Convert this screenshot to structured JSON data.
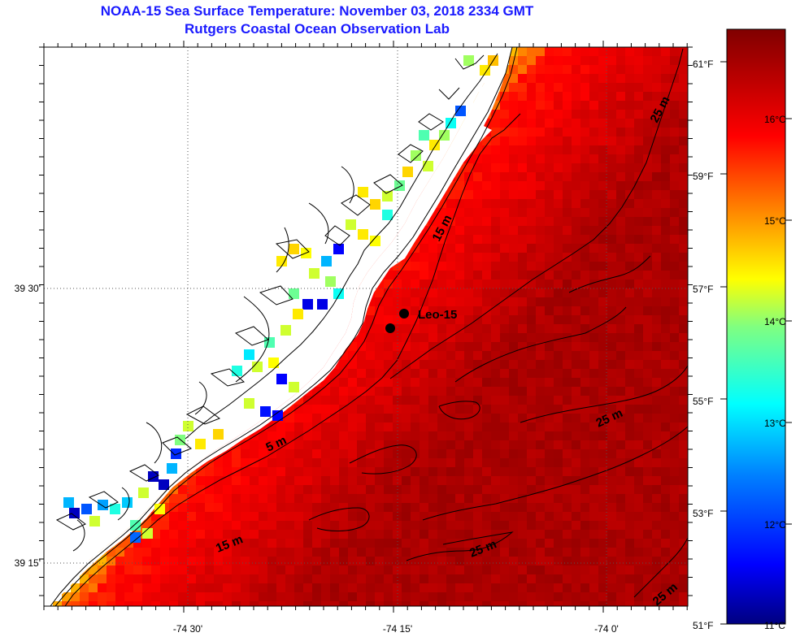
{
  "header": {
    "title": "NOAA-15 Sea Surface Temperature:  November 03, 2018 2334 GMT",
    "subtitle": "Rutgers Coastal Ocean Observation Lab"
  },
  "axes": {
    "lon_labels": [
      "-74 30'",
      "-74 15'",
      "-74 0'"
    ],
    "lat_labels": [
      "39 30'",
      "39 15'"
    ]
  },
  "contours": {
    "labels": [
      "5 m",
      "15 m",
      "15 m",
      "25 m",
      "25 m",
      "25 m",
      "25 m"
    ]
  },
  "station": {
    "name": "Leo-15"
  },
  "colorbar": {
    "celsius_labels": [
      "16°C",
      "15°C",
      "14°C",
      "13°C",
      "12°C",
      "11°C"
    ],
    "fahrenheit_labels": [
      "61°F",
      "59°F",
      "57°F",
      "55°F",
      "53°F",
      "51°F"
    ],
    "range_c": [
      11,
      17
    ],
    "colors": [
      "#000080",
      "#0000ff",
      "#0080ff",
      "#00ffff",
      "#80ff80",
      "#ffff00",
      "#ff8000",
      "#ff0000",
      "#800000"
    ]
  },
  "sst": {
    "units": "°C",
    "land_color": "#ffffff",
    "coastline_color": "#000000"
  }
}
